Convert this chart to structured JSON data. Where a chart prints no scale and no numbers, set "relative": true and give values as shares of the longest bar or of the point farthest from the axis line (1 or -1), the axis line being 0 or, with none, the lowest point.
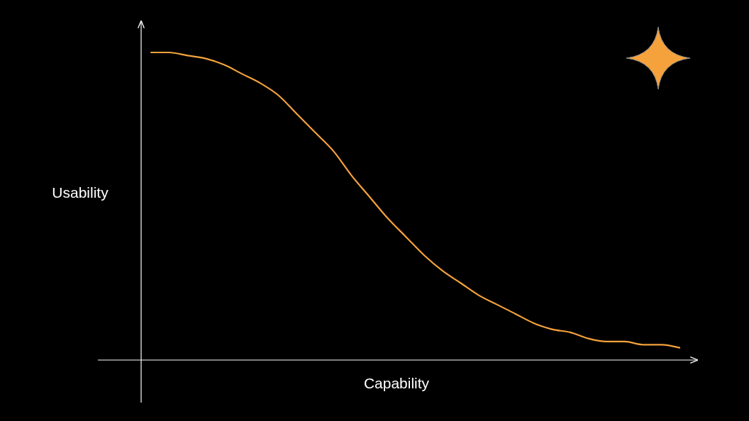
{
  "chart_data": {
    "type": "line",
    "relative": true,
    "xlabel": "Capability",
    "ylabel": "Usability",
    "categories": [
      null,
      null,
      null,
      null,
      null,
      null,
      null,
      null,
      null,
      null,
      null,
      null,
      null,
      null,
      null,
      null,
      null,
      null,
      null,
      null,
      null,
      null,
      null,
      null,
      null,
      null,
      null,
      null,
      null,
      null
    ],
    "series": [
      {
        "color": "#f5a23c",
        "values": [
          1,
          1,
          0.99,
          0.98,
          0.96,
          0.93,
          0.9,
          0.86,
          0.8,
          0.74,
          0.68,
          0.6,
          0.53,
          0.46,
          0.4,
          0.34,
          0.29,
          0.25,
          0.21,
          0.18,
          0.15,
          0.12,
          0.1,
          0.09,
          0.07,
          0.06,
          0.06,
          0.05,
          0.05,
          0.04
        ]
      }
    ],
    "marker": "none",
    "line_style": "solid"
  }
}
